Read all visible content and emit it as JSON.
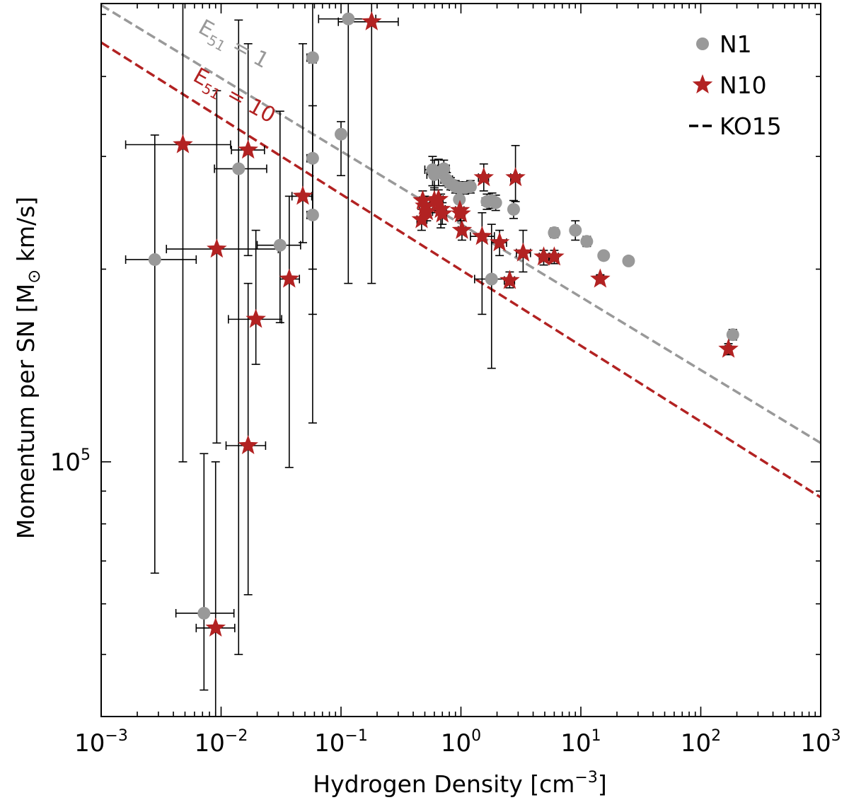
{
  "chart_data": {
    "type": "scatter",
    "xscale": "log",
    "yscale": "log",
    "xlim": [
      0.001,
      1000
    ],
    "ylim": [
      40000,
      520000
    ],
    "xlabel": "Hydrogen Density [cm",
    "xlabel_sup": "−3",
    "xlabel_tail": "]",
    "ylabel": "Momentum per SN [M",
    "ylabel_sym": "⊙",
    "ylabel_tail": " km/s]",
    "x_ticks": [
      {
        "value": 0.001,
        "base": "10",
        "exp": "−3"
      },
      {
        "value": 0.01,
        "base": "10",
        "exp": "−2"
      },
      {
        "value": 0.1,
        "base": "10",
        "exp": "−1"
      },
      {
        "value": 1,
        "base": "10",
        "exp": "0"
      },
      {
        "value": 10,
        "base": "10",
        "exp": "1"
      },
      {
        "value": 100,
        "base": "10",
        "exp": "2"
      },
      {
        "value": 1000,
        "base": "10",
        "exp": "3"
      }
    ],
    "y_ticks": [
      {
        "value": 100000,
        "base": "10",
        "exp": "5"
      }
    ],
    "legend": {
      "position": "top-right",
      "entries": [
        {
          "label": "N1",
          "marker": "circle",
          "color": "#999999"
        },
        {
          "label": "N10",
          "marker": "star",
          "color": "#B22222"
        },
        {
          "label": "KO15",
          "marker": "dashed-line",
          "color": "#000000"
        }
      ]
    },
    "lines": [
      {
        "name": "KO15 E51=1",
        "color": "#999999",
        "style": "dashed",
        "x": [
          0.001,
          1000
        ],
        "y": [
          517000,
          107000
        ]
      },
      {
        "name": "KO15 E51=10",
        "color": "#B22222",
        "style": "dashed",
        "x": [
          0.001,
          1000
        ],
        "y": [
          452000,
          88000
        ]
      }
    ],
    "annotations": [
      {
        "text_main": "E",
        "text_sub": "51",
        "text_tail": " = 1",
        "color": "#999999",
        "x": 0.0063,
        "y": 470000,
        "angle": 29
      },
      {
        "text_main": "E",
        "text_sub": "51",
        "text_tail": " = 10",
        "color": "#B22222",
        "x": 0.0057,
        "y": 395000,
        "angle": 29
      }
    ],
    "series": [
      {
        "name": "N1",
        "marker": "circle",
        "color": "#999999",
        "points": [
          {
            "x": 0.0028,
            "y": 207000,
            "xerr": [
              0.0016,
              0.0062
            ],
            "yerr": [
              67000,
              324000
            ]
          },
          {
            "x": 0.0072,
            "y": 58000,
            "xerr": [
              0.0042,
              0.0128
            ],
            "yerr": [
              44000,
              103000
            ]
          },
          {
            "x": 0.014,
            "y": 287000,
            "xerr": [
              0.0088,
              0.024
            ],
            "yerr": [
              50000,
              490000
            ]
          },
          {
            "x": 0.031,
            "y": 218000,
            "xerr": [
              0.02,
              0.046
            ],
            "yerr": [
              165000,
              353000
            ]
          },
          {
            "x": 0.058,
            "y": 428000,
            "xerr": [
              0.052,
              0.062
            ],
            "yerr": [
              115000,
              520000
            ]
          },
          {
            "x": 0.058,
            "y": 298000,
            "xerr": [
              0.052,
              0.062
            ],
            "yerr": [
              200000,
              420000
            ]
          },
          {
            "x": 0.058,
            "y": 243000,
            "xerr": [
              0.052,
              0.062
            ],
            "yerr": [
              170000,
              360000
            ]
          },
          {
            "x": 0.1,
            "y": 325000,
            "xerr": [
              0.094,
              0.107
            ],
            "yerr": [
              280000,
              340000
            ]
          },
          {
            "x": 0.115,
            "y": 492000,
            "xerr": [
              0.065,
              0.195
            ],
            "yerr": [
              190000,
              520000
            ]
          },
          {
            "x": 0.58,
            "y": 286000,
            "xerr": [
              0.5,
              0.64
            ],
            "yerr": [
              270000,
              300000
            ]
          },
          {
            "x": 0.6,
            "y": 281000,
            "xerr": [
              0.52,
              0.68
            ],
            "yerr": [
              266000,
              296000
            ]
          },
          {
            "x": 0.65,
            "y": 283000,
            "xerr": [
              0.55,
              0.72
            ],
            "yerr": [
              270000,
              297000
            ]
          },
          {
            "x": 0.72,
            "y": 287000,
            "xerr": [
              0.64,
              0.8
            ],
            "yerr": [
              280000,
              296000
            ]
          },
          {
            "x": 0.76,
            "y": 276000,
            "xerr": [
              0.68,
              0.85
            ],
            "yerr": [
              270000,
              283000
            ]
          },
          {
            "x": 0.82,
            "y": 272000,
            "xerr": [
              0.74,
              0.9
            ],
            "yerr": [
              266000,
              278000
            ]
          },
          {
            "x": 0.9,
            "y": 269000,
            "xerr": [
              0.8,
              1.0
            ],
            "yerr": [
              263000,
              275000
            ]
          },
          {
            "x": 0.98,
            "y": 268000,
            "xerr": [
              0.9,
              1.06
            ],
            "yerr": [
              262000,
              274000
            ]
          },
          {
            "x": 1.08,
            "y": 268000,
            "xerr": [
              1.0,
              1.16
            ],
            "yerr": [
              262000,
              274000
            ]
          },
          {
            "x": 1.2,
            "y": 269000,
            "xerr": [
              1.1,
              1.3
            ],
            "yerr": [
              263000,
              275000
            ]
          },
          {
            "x": 0.97,
            "y": 257000,
            "xerr": [
              0.9,
              1.05
            ],
            "yerr": [
              248000,
              266000
            ]
          },
          {
            "x": 1.65,
            "y": 255000,
            "xerr": [
              1.5,
              1.8
            ],
            "yerr": [
              248000,
              262000
            ]
          },
          {
            "x": 1.82,
            "y": 256000,
            "xerr": [
              1.7,
              1.95
            ],
            "yerr": [
              249000,
              263000
            ]
          },
          {
            "x": 1.95,
            "y": 254000,
            "xerr": [
              1.82,
              2.1
            ],
            "yerr": [
              247000,
              261000
            ]
          },
          {
            "x": 2.75,
            "y": 248000,
            "xerr": [
              2.55,
              2.95
            ],
            "yerr": [
              240000,
              256000
            ]
          },
          {
            "x": 1.8,
            "y": 193000,
            "xerr": [
              1.3,
              2.5
            ],
            "yerr": [
              140000,
              235000
            ]
          },
          {
            "x": 6.0,
            "y": 228000,
            "xerr": [
              5.5,
              6.5
            ],
            "yerr": [
              224000,
              232000
            ]
          },
          {
            "x": 9.0,
            "y": 230000,
            "xerr": [
              8.5,
              9.5
            ],
            "yerr": [
              222000,
              238000
            ]
          },
          {
            "x": 11.2,
            "y": 221000,
            "xerr": [
              10.5,
              12
            ],
            "yerr": [
              217000,
              225000
            ]
          },
          {
            "x": 15.5,
            "y": 210000,
            "xerr": [
              14.5,
              16.5
            ],
            "yerr": [
              207000,
              213000
            ]
          },
          {
            "x": 25.0,
            "y": 206000,
            "xerr": [
              24,
              26
            ],
            "yerr": [
              203000,
              209000
            ]
          },
          {
            "x": 185.0,
            "y": 158000,
            "xerr": [
              175,
              195
            ],
            "yerr": [
              155000,
              161000
            ]
          }
        ]
      },
      {
        "name": "N10",
        "marker": "star",
        "color": "#B22222",
        "points": [
          {
            "x": 0.0048,
            "y": 313000,
            "xerr": [
              0.0016,
              0.012
            ],
            "yerr": [
              100000,
              520000
            ]
          },
          {
            "x": 0.009,
            "y": 55000,
            "xerr": [
              0.0062,
              0.013
            ],
            "yerr": [
              40000,
              100000
            ]
          },
          {
            "x": 0.0092,
            "y": 215000,
            "xerr": [
              0.0035,
              0.03
            ],
            "yerr": [
              107000,
              380000
            ]
          },
          {
            "x": 0.0168,
            "y": 106000,
            "xerr": [
              0.011,
              0.0235
            ],
            "yerr": [
              62000,
              190000
            ]
          },
          {
            "x": 0.0168,
            "y": 307000,
            "xerr": [
              0.0122,
              0.023
            ],
            "yerr": [
              210000,
              450000
            ]
          },
          {
            "x": 0.0195,
            "y": 167000,
            "xerr": [
              0.0115,
              0.032
            ],
            "yerr": [
              142000,
              230000
            ]
          },
          {
            "x": 0.037,
            "y": 193000,
            "xerr": [
              0.031,
              0.045
            ],
            "yerr": [
              98000,
              260000
            ]
          },
          {
            "x": 0.048,
            "y": 260000,
            "xerr": [
              0.039,
              0.057
            ],
            "yerr": [
              220000,
              450000
            ]
          },
          {
            "x": 0.18,
            "y": 487000,
            "xerr": [
              0.095,
              0.3
            ],
            "yerr": [
              190000,
              520000
            ]
          },
          {
            "x": 0.48,
            "y": 256000,
            "xerr": [
              0.45,
              0.52
            ],
            "yerr": [
              240000,
              265000
            ]
          },
          {
            "x": 0.5,
            "y": 251000,
            "xerr": [
              0.45,
              0.55
            ],
            "yerr": [
              243000,
              260000
            ]
          },
          {
            "x": 0.52,
            "y": 246000,
            "xerr": [
              0.47,
              0.58
            ],
            "yerr": [
              238000,
              254000
            ]
          },
          {
            "x": 0.47,
            "y": 239000,
            "xerr": [
              0.43,
              0.52
            ],
            "yerr": [
              230000,
              248000
            ]
          },
          {
            "x": 0.6,
            "y": 256000,
            "xerr": [
              0.55,
              0.66
            ],
            "yerr": [
              245000,
              268000
            ]
          },
          {
            "x": 0.65,
            "y": 257000,
            "xerr": [
              0.6,
              0.71
            ],
            "yerr": [
              247000,
              266000
            ]
          },
          {
            "x": 0.68,
            "y": 248000,
            "xerr": [
              0.63,
              0.74
            ],
            "yerr": [
              232000,
              262000
            ]
          },
          {
            "x": 0.7,
            "y": 244000,
            "xerr": [
              0.65,
              0.76
            ],
            "yerr": [
              235000,
              254000
            ]
          },
          {
            "x": 0.98,
            "y": 247000,
            "xerr": [
              0.9,
              1.06
            ],
            "yerr": [
              238000,
              256000
            ]
          },
          {
            "x": 1.0,
            "y": 244000,
            "xerr": [
              0.92,
              1.08
            ],
            "yerr": [
              232000,
              258000
            ]
          },
          {
            "x": 1.02,
            "y": 230000,
            "xerr": [
              0.95,
              1.1
            ],
            "yerr": [
              222000,
              238000
            ]
          },
          {
            "x": 1.5,
            "y": 225000,
            "xerr": [
              1.2,
              1.9
            ],
            "yerr": [
              170000,
              245000
            ]
          },
          {
            "x": 1.55,
            "y": 278000,
            "xerr": [
              1.4,
              1.7
            ],
            "yerr": [
              265000,
              292000
            ]
          },
          {
            "x": 2.1,
            "y": 220000,
            "xerr": [
              1.8,
              2.4
            ],
            "yerr": [
              210000,
              230000
            ]
          },
          {
            "x": 2.55,
            "y": 192000,
            "xerr": [
              2.3,
              2.8
            ],
            "yerr": [
              187000,
              198000
            ]
          },
          {
            "x": 2.85,
            "y": 278000,
            "xerr": [
              2.6,
              3.1
            ],
            "yerr": [
              255000,
              312000
            ]
          },
          {
            "x": 3.3,
            "y": 212000,
            "xerr": [
              2.9,
              3.8
            ],
            "yerr": [
              198000,
              230000
            ]
          },
          {
            "x": 4.9,
            "y": 209000,
            "xerr": [
              4.5,
              5.4
            ],
            "yerr": [
              203000,
              214000
            ]
          },
          {
            "x": 6.0,
            "y": 209000,
            "xerr": [
              5.5,
              6.5
            ],
            "yerr": [
              204000,
              214000
            ]
          },
          {
            "x": 14.5,
            "y": 193000,
            "xerr": [
              13.5,
              15.5
            ],
            "yerr": [
              190000,
              196000
            ]
          },
          {
            "x": 170.0,
            "y": 150000,
            "xerr": [
              160,
              180
            ],
            "yerr": [
              147000,
              153000
            ]
          }
        ]
      }
    ]
  }
}
